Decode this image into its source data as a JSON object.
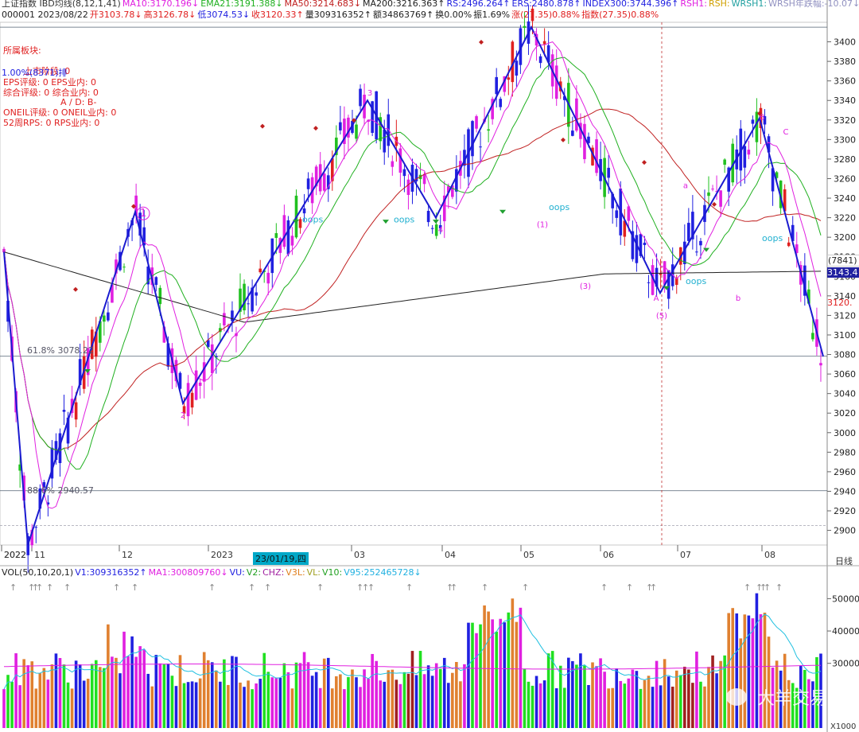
{
  "header": {
    "line1": [
      {
        "text": "上证指数 IBD均线(8,12,1,41)",
        "color": "#333333"
      },
      {
        "text": "MA10:3170.196↓",
        "color": "#e020e0"
      },
      {
        "text": "EMA21:3191.388↓",
        "color": "#20b020"
      },
      {
        "text": "MA50:3214.683↓",
        "color": "#c02020"
      },
      {
        "text": "MA200:3216.363↑",
        "color": "#222222"
      },
      {
        "text": "RS:2496.264↑",
        "color": "#2020e0"
      },
      {
        "text": "ERS:2480.878↑",
        "color": "#2020e0"
      },
      {
        "text": "INDEX300:3744.396↑",
        "color": "#2020e0"
      },
      {
        "text": "RSH1:",
        "color": "#e020e0"
      },
      {
        "text": "RSH:",
        "color": "#d0a000"
      },
      {
        "text": "WRSH1:",
        "color": "#20a0a0"
      },
      {
        "text": "WRSH年跌幅:-10.07↓低价",
        "color": "#9090c0"
      }
    ],
    "line2": [
      {
        "text": "000001 2023/08/22",
        "color": "#222222"
      },
      {
        "text": "开3103.78↓",
        "color": "#e02020"
      },
      {
        "text": "高3126.78↓",
        "color": "#e02020"
      },
      {
        "text": "低3074.53↓",
        "color": "#2020e0"
      },
      {
        "text": "收3120.33↑",
        "color": "#e02020"
      },
      {
        "text": "量309316352↑",
        "color": "#222222"
      },
      {
        "text": "额34863769↑",
        "color": "#222222"
      },
      {
        "text": "换0.00%",
        "color": "#222222"
      },
      {
        "text": "振1.69%",
        "color": "#222222"
      },
      {
        "text": "涨(27.35)0.88%",
        "color": "#e02020"
      },
      {
        "text": "指数(27.35)0.88%",
        "color": "#e02020"
      }
    ]
  },
  "side_panel": {
    "title": "所属板块:",
    "rows": [
      "1.00%(8371)排",
      "EPS评级: 0  EPS业内: 0",
      "综合评级: 0  综合业内: 0",
      "A / D: B-",
      "ONEIL评级: 0  ONEIL业内: 0",
      "52周RPS: 0  RPS业内: 0"
    ],
    "overlap": "上市阶段: 0"
  },
  "right_badges": {
    "count": "(7841)",
    "price": "3143.4",
    "last": "3120."
  },
  "fib_labels": [
    "61.8% 3078.22",
    "88.6% 2940.57"
  ],
  "wave_labels": [
    "1",
    "2",
    "3",
    "4",
    "5",
    "A",
    "B",
    "C",
    "a",
    "b",
    "c",
    "(1)",
    "(3)",
    "(5)"
  ],
  "oops_label": "oops",
  "date_tooltip": "23/01/19,四",
  "period_label": "日线",
  "vol_header": [
    {
      "text": "VOL(50,10,20,1)",
      "color": "#222222"
    },
    {
      "text": "V1:309316352↑",
      "color": "#2020e0"
    },
    {
      "text": "MA1:300809760↓",
      "color": "#e020e0"
    },
    {
      "text": "VU:",
      "color": "#2020e0"
    },
    {
      "text": "V2:",
      "color": "#20a020"
    },
    {
      "text": "CHZ:",
      "color": "#a020a0"
    },
    {
      "text": "V3L:",
      "color": "#e08020"
    },
    {
      "text": "VL:",
      "color": "#a0a020"
    },
    {
      "text": "V10:",
      "color": "#20a020"
    },
    {
      "text": "V95:252465728↓",
      "color": "#20b0e0"
    }
  ],
  "vol_unit": "X1000",
  "watermark": "大羊交易",
  "chart_data": [
    {
      "type": "candlestick",
      "title": "上证指数 日线",
      "y_ticks": [
        2900,
        2920,
        2940,
        2960,
        2980,
        3000,
        3020,
        3040,
        3060,
        3080,
        3100,
        3120,
        3140,
        3160,
        3180,
        3200,
        3220,
        3240,
        3260,
        3280,
        3300,
        3320,
        3340,
        3360,
        3380,
        3400
      ],
      "ylim": [
        2885,
        3420
      ],
      "x_ticks": [
        "2022",
        "11",
        "12",
        "2023",
        "02",
        "03",
        "04",
        "05",
        "06",
        "07",
        "08"
      ],
      "wave_points": [
        {
          "label": "start",
          "value": 3185
        },
        {
          "label": "low",
          "value": 2885
        },
        {
          "label": "1",
          "value": 3226
        },
        {
          "label": "2",
          "value": 3030
        },
        {
          "label": "3",
          "value": 3340
        },
        {
          "label": "4",
          "value": 3220
        },
        {
          "label": "5",
          "value": 3415
        },
        {
          "label": "A",
          "value": 3143
        },
        {
          "label": "B",
          "value": 3322
        },
        {
          "label": "end",
          "value": 3078
        }
      ],
      "fib_levels": [
        {
          "name": "61.8%",
          "value": 3078.22
        },
        {
          "name": "88.6%",
          "value": 2940.57
        }
      ],
      "ma_series": [
        {
          "name": "MA200",
          "color": "#222222"
        },
        {
          "name": "MA50",
          "color": "#c02020"
        },
        {
          "name": "EMA21",
          "color": "#20b020"
        },
        {
          "name": "MA10",
          "color": "#e020e0"
        }
      ],
      "last": {
        "open": 3103.78,
        "high": 3126.78,
        "low": 3074.53,
        "close": 3120.33
      }
    },
    {
      "type": "bar",
      "title": "VOL(50,10,20,1)",
      "y_ticks": [
        30000,
        40000,
        50000
      ],
      "ylabel": "X1000",
      "ylim": [
        10000,
        56000
      ],
      "last_value_x1000": 309316
    }
  ]
}
